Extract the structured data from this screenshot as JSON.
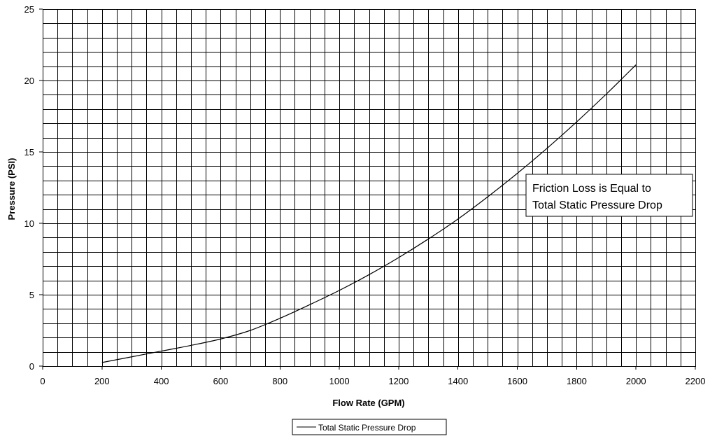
{
  "chart_data": {
    "type": "line",
    "title": "",
    "xlabel": "Flow Rate (GPM)",
    "ylabel": "Pressure (PSI)",
    "xlim": [
      0,
      2200
    ],
    "ylim": [
      0,
      25
    ],
    "x_ticks": [
      0,
      200,
      400,
      600,
      800,
      1000,
      1200,
      1400,
      1600,
      1800,
      2000,
      2200
    ],
    "y_ticks": [
      0,
      5,
      10,
      15,
      20,
      25
    ],
    "grid": true,
    "x_minor_step": 50,
    "y_minor_step": 1,
    "series": [
      {
        "name": "Total Static Pressure Drop",
        "color": "#000000",
        "x": [
          200,
          300,
          400,
          500,
          600,
          700,
          800,
          900,
          1000,
          1100,
          1200,
          1300,
          1400,
          1500,
          1600,
          1700,
          1800,
          1900,
          2000
        ],
        "y": [
          0.25,
          0.65,
          1.05,
          1.45,
          1.9,
          2.5,
          3.35,
          4.3,
          5.3,
          6.4,
          7.6,
          8.9,
          10.3,
          11.85,
          13.5,
          15.25,
          17.1,
          19.05,
          21.1
        ]
      }
    ],
    "annotations": [
      {
        "lines": [
          "Friction Loss is Equal to",
          "Total Static Pressure Drop"
        ]
      }
    ],
    "legend": {
      "position": "bottom-center"
    }
  }
}
